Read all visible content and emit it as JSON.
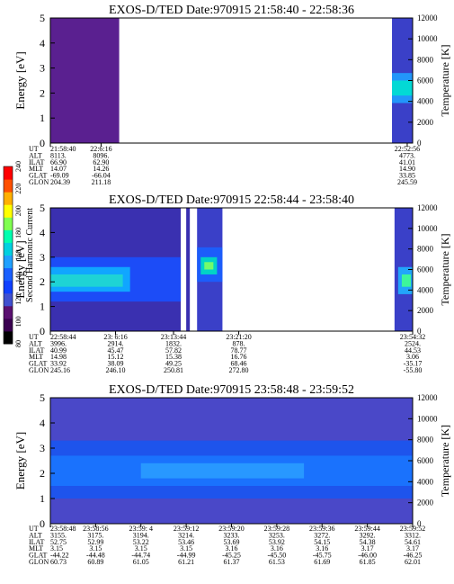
{
  "colorbar": {
    "label": "Second Harmonic Current",
    "ticks": [
      "80",
      "100",
      "120",
      "140",
      "160",
      "180",
      "200",
      "220",
      "240"
    ],
    "colors": [
      "#000000",
      "#3a0050",
      "#5a1070",
      "#4050d0",
      "#1040ff",
      "#1a60ff",
      "#20a0ff",
      "#00d0e0",
      "#00ffb0",
      "#80ff50",
      "#ffff00",
      "#ffb000",
      "#ff5000",
      "#ff0000"
    ]
  },
  "chart_data": [
    {
      "type": "heatmap",
      "title": "EXOS-D/TED   Date:970915   21:58:40 - 22:58:36",
      "ylabel": "Energy [eV]",
      "y2label": "Temperature [K]",
      "ylim": [
        0,
        5
      ],
      "y2lim": [
        0,
        12000
      ],
      "yticks": [
        "0",
        "1",
        "2",
        "3",
        "4",
        "5"
      ],
      "y2ticks": [
        "0",
        "2000",
        "4000",
        "6000",
        "8000",
        "10000",
        "12000"
      ],
      "segments": [
        {
          "x0": 0.0,
          "x1": 0.19,
          "fill": "#5a2090"
        },
        {
          "x0": 0.943,
          "x1": 1.0,
          "fill": "#3a40c8"
        }
      ],
      "bands": [
        {
          "x0": 0.943,
          "x1": 1.0,
          "y0": 1.6,
          "y1": 2.8,
          "fill": "#20a0ff"
        },
        {
          "x0": 0.943,
          "x1": 1.0,
          "y0": 1.9,
          "y1": 2.5,
          "fill": "#00e0d0"
        }
      ],
      "ut_table": {
        "row_labels": [
          "UT",
          "ALT",
          "ILAT",
          "MLT",
          "GLAT",
          "GLON"
        ],
        "columns": [
          {
            "x": 0.0,
            "values": [
              "21:58:40",
              "8113.",
              "66.90",
              "14.07",
              "-69.09",
              "204.39"
            ]
          },
          {
            "x": 0.14,
            "values": [
              "22:6:16",
              "8096.",
              "62.90",
              "14.26",
              "-66.04",
              "211.18"
            ]
          },
          {
            "x": 0.985,
            "values": [
              "22:52:56",
              "4773.",
              "41.01",
              "14.90",
              "33.85",
              "245.59"
            ]
          }
        ]
      }
    },
    {
      "type": "heatmap",
      "title": "EXOS-D/TED   Date:970915   22:58:44 - 23:58:40",
      "ylabel": "Energy [eV]",
      "y2label": "Temperature [K]",
      "ylim": [
        0,
        5
      ],
      "y2lim": [
        0,
        12000
      ],
      "yticks": [
        "0",
        "1",
        "2",
        "3",
        "4",
        "5"
      ],
      "y2ticks": [
        "0",
        "2000",
        "4000",
        "6000",
        "8000",
        "10000",
        "12000"
      ],
      "segments": [
        {
          "x0": 0.0,
          "x1": 0.36,
          "fill": "#3a30b0"
        },
        {
          "x0": 0.375,
          "x1": 0.385,
          "fill": "#3a30b0"
        },
        {
          "x0": 0.405,
          "x1": 0.475,
          "fill": "#3a40c8"
        },
        {
          "x0": 0.95,
          "x1": 1.0,
          "fill": "#3a40c8"
        }
      ],
      "bands": [
        {
          "x0": 0.0,
          "x1": 0.36,
          "y0": 1.2,
          "y1": 3.0,
          "fill": "#1a50ff"
        },
        {
          "x0": 0.0,
          "x1": 0.22,
          "y0": 1.6,
          "y1": 2.6,
          "fill": "#10b0ff"
        },
        {
          "x0": 0.0,
          "x1": 0.2,
          "y0": 1.8,
          "y1": 2.3,
          "fill": "#20d8d0"
        },
        {
          "x0": 0.405,
          "x1": 0.475,
          "y0": 2.0,
          "y1": 3.4,
          "fill": "#1a60ff"
        },
        {
          "x0": 0.415,
          "x1": 0.46,
          "y0": 2.3,
          "y1": 3.0,
          "fill": "#00e0c0"
        },
        {
          "x0": 0.425,
          "x1": 0.45,
          "y0": 2.5,
          "y1": 2.8,
          "fill": "#80ff60"
        },
        {
          "x0": 0.96,
          "x1": 1.0,
          "y0": 1.5,
          "y1": 2.6,
          "fill": "#20b0ff"
        },
        {
          "x0": 0.97,
          "x1": 0.995,
          "y0": 1.8,
          "y1": 2.3,
          "fill": "#40ff90"
        }
      ],
      "ut_table": {
        "row_labels": [
          "UT",
          "ALT",
          "ILAT",
          "MLT",
          "GLAT",
          "GLON"
        ],
        "columns": [
          {
            "x": 0.0,
            "values": [
              "22:58:44",
              "3996.",
              "40.99",
              "14.98",
              "33.92",
              "245.16"
            ]
          },
          {
            "x": 0.18,
            "values": [
              "23: 6:16",
              "2914.",
              "45.47",
              "15.12",
              "38.09",
              "246.10"
            ]
          },
          {
            "x": 0.34,
            "values": [
              "23:13:44",
              "1832.",
              "57.82",
              "15.38",
              "49.25",
              "250.81"
            ]
          },
          {
            "x": 0.52,
            "values": [
              "23:21:20",
              "878.",
              "78.77",
              "16.76",
              "68.46",
              "272.80"
            ]
          },
          {
            "x": 1.0,
            "values": [
              "23:54:32",
              "2524.",
              "44.53",
              "3.06",
              "-35.17",
              "-55.80"
            ]
          }
        ]
      }
    },
    {
      "type": "heatmap",
      "title": "EXOS-D/TED   Date:970915   23:58:48 - 23:59:52",
      "ylabel": "Energy [eV]",
      "y2label": "Temperature [K]",
      "ylim": [
        0,
        5
      ],
      "y2lim": [
        0,
        12000
      ],
      "yticks": [
        "0",
        "1",
        "2",
        "3",
        "4",
        "5"
      ],
      "y2ticks": [
        "0",
        "2000",
        "4000",
        "6000",
        "8000",
        "10000",
        "12000"
      ],
      "segments": [
        {
          "x0": 0.0,
          "x1": 1.0,
          "fill": "#4a48c8"
        }
      ],
      "bands": [
        {
          "x0": 0.0,
          "x1": 1.0,
          "y0": 1.0,
          "y1": 3.3,
          "fill": "#1a55f0"
        },
        {
          "x0": 0.0,
          "x1": 1.0,
          "y0": 1.5,
          "y1": 2.7,
          "fill": "#1a75ff"
        },
        {
          "x0": 0.25,
          "x1": 0.7,
          "y0": 1.8,
          "y1": 2.4,
          "fill": "#2a9cff"
        }
      ],
      "ut_table": {
        "row_labels": [
          "UT",
          "ALT",
          "ILAT",
          "MLT",
          "GLAT",
          "GLON"
        ],
        "columns": [
          {
            "x": 0.0,
            "values": [
              "23:58:48",
              "3155.",
              "52.75",
              "3.15",
              "-44.22",
              "60.73"
            ]
          },
          {
            "x": 0.125,
            "values": [
              "23:58:56",
              "3175.",
              "52.99",
              "3.15",
              "-44.48",
              "60.89"
            ]
          },
          {
            "x": 0.25,
            "values": [
              "23:59: 4",
              "3194.",
              "53.22",
              "3.15",
              "-44.74",
              "61.05"
            ]
          },
          {
            "x": 0.375,
            "values": [
              "23:59:12",
              "3214.",
              "53.46",
              "3.15",
              "-44.99",
              "61.21"
            ]
          },
          {
            "x": 0.5,
            "values": [
              "23:59:20",
              "3233.",
              "53.69",
              "3.16",
              "-45.25",
              "61.37"
            ]
          },
          {
            "x": 0.625,
            "values": [
              "23:59:28",
              "3253.",
              "53.92",
              "3.16",
              "-45.50",
              "61.53"
            ]
          },
          {
            "x": 0.75,
            "values": [
              "23:59:36",
              "3272.",
              "54.15",
              "3.16",
              "-45.75",
              "61.69"
            ]
          },
          {
            "x": 0.875,
            "values": [
              "23:59:44",
              "3292.",
              "54.38",
              "3.17",
              "-46.00",
              "61.85"
            ]
          },
          {
            "x": 1.0,
            "values": [
              "23:59:52",
              "3312.",
              "54.61",
              "3.17",
              "-46.25",
              "62.01"
            ]
          }
        ]
      }
    }
  ]
}
